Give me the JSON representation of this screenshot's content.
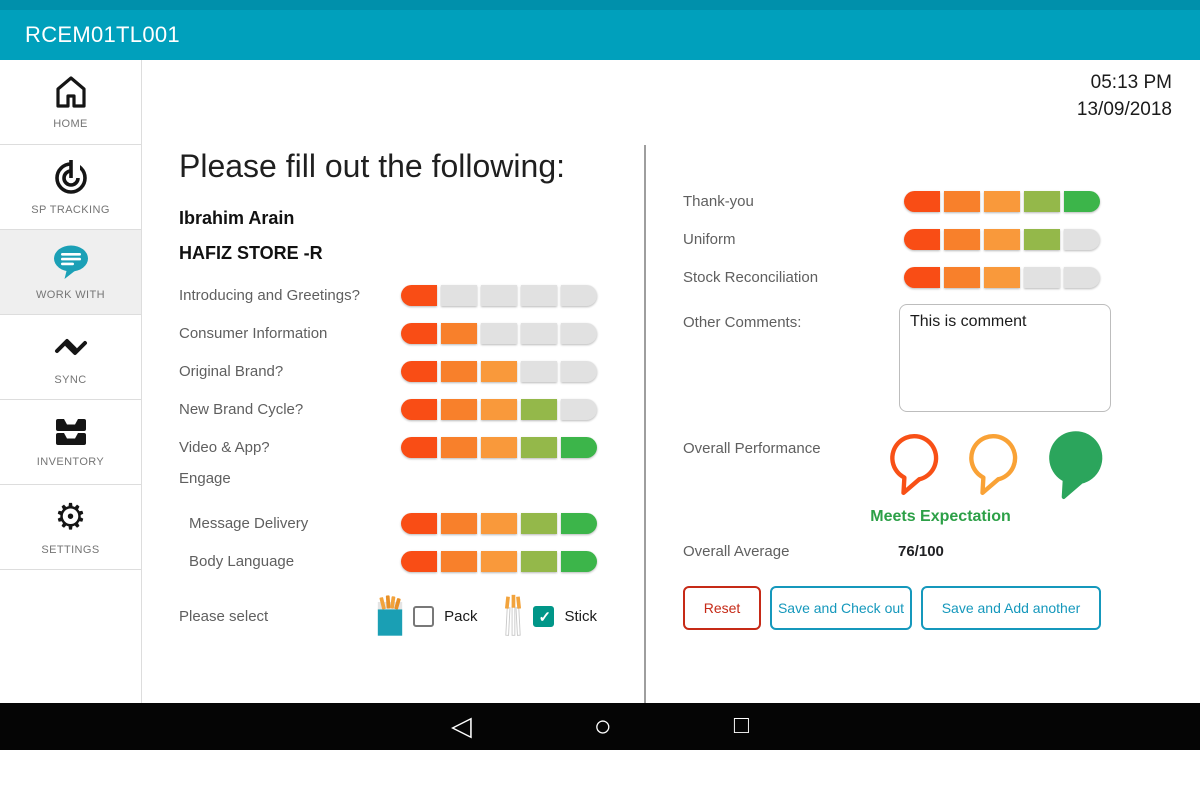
{
  "app": {
    "title": "RCEM01TL001"
  },
  "datetime": {
    "time": "05:13 PM",
    "date": "13/09/2018"
  },
  "sidebar": [
    {
      "label": "HOME",
      "icon": "home-icon",
      "selected": false
    },
    {
      "label": "SP TRACKING",
      "icon": "sp-tracking-icon",
      "selected": false
    },
    {
      "label": "WORK WITH",
      "icon": "work-with-icon",
      "selected": true
    },
    {
      "label": "SYNC",
      "icon": "sync-icon",
      "selected": false
    },
    {
      "label": "INVENTORY",
      "icon": "inventory-icon",
      "selected": false
    },
    {
      "label": "SETTINGS",
      "icon": "settings-icon",
      "selected": false
    }
  ],
  "form": {
    "heading": "Please fill out the following:",
    "person_name": "Ibrahim Arain",
    "store_name": "HAFIZ STORE -R",
    "ratings": [
      {
        "label": "Introducing and Greetings?",
        "value": 1,
        "max": 5
      },
      {
        "label": "Consumer Information",
        "value": 2,
        "max": 5
      },
      {
        "label": "Original Brand?",
        "value": 3,
        "max": 5
      },
      {
        "label": "New Brand Cycle?",
        "value": 4,
        "max": 5
      },
      {
        "label": "Video & App?",
        "value": 5,
        "max": 5
      }
    ],
    "engage_section": {
      "label": "Engage",
      "ratings": [
        {
          "label": "Message Delivery",
          "value": 5,
          "max": 5
        },
        {
          "label": "Body Language",
          "value": 5,
          "max": 5
        }
      ]
    },
    "product_select": {
      "label": "Please select",
      "options": [
        {
          "label": "Pack",
          "checked": false,
          "icon": "pack-icon"
        },
        {
          "label": "Stick",
          "checked": true,
          "icon": "stick-icon"
        }
      ]
    }
  },
  "assessment": {
    "ratings": [
      {
        "label": "Thank-you",
        "value": 5,
        "max": 5
      },
      {
        "label": "Uniform",
        "value": 4,
        "max": 5
      },
      {
        "label": "Stock Reconciliation",
        "value": 3,
        "max": 5
      }
    ],
    "comments": {
      "label": "Other Comments:",
      "value": "This is comment"
    },
    "overall_performance": {
      "label": "Overall Performance",
      "options": [
        {
          "name": "below-expectation",
          "color": "#F85016",
          "selected": false
        },
        {
          "name": "average",
          "color": "#F9A236",
          "selected": false
        },
        {
          "name": "meets-expectation",
          "color": "#2BA55C",
          "selected": true
        }
      ],
      "result_label": "Meets Expectation"
    },
    "overall_average": {
      "label": "Overall Average",
      "value": "76/100"
    },
    "actions": [
      {
        "label": "Reset",
        "variant": "danger"
      },
      {
        "label": "Save and Check out",
        "variant": "teal"
      },
      {
        "label": "Save and Add another",
        "variant": "teal"
      }
    ]
  },
  "android_nav": {
    "back_glyph": "◁",
    "home_glyph": "○",
    "recents_glyph": "□"
  },
  "colors": {
    "header_teal": "#00A0BC",
    "rating_segments": [
      "#F94D15",
      "#F8802B",
      "#F9993B",
      "#94B84A",
      "#3CB54A"
    ],
    "rating_empty": "#E1E1E1",
    "accent_teal": "#1598BC",
    "danger_red": "#C62A17",
    "success_green": "#2CA047",
    "checkbox_checked": "#009688"
  }
}
